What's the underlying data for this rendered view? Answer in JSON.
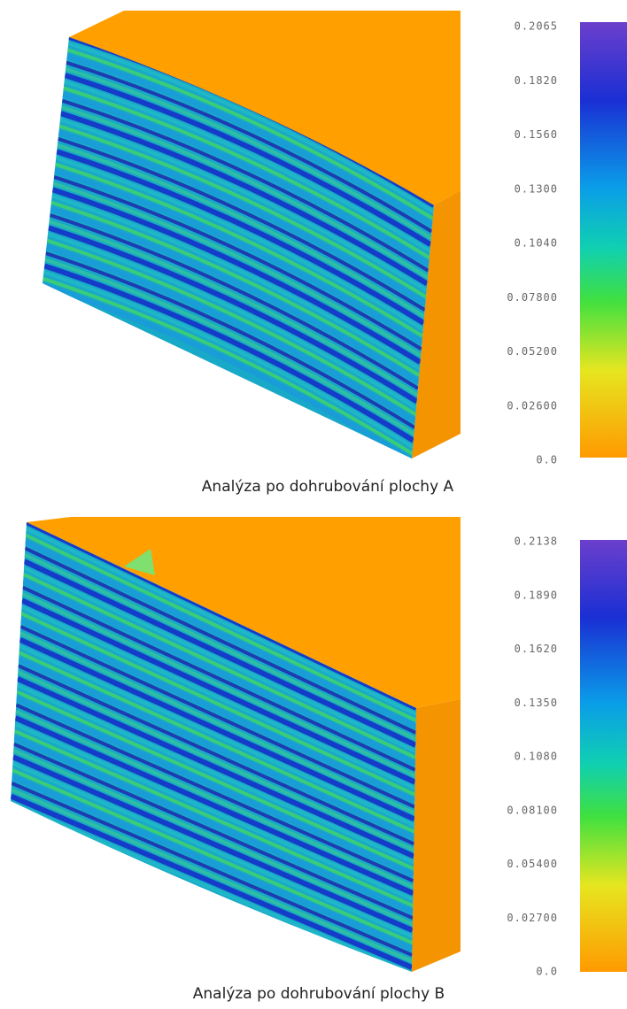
{
  "panels": [
    {
      "caption": "Analýza po dohrubování plochy A",
      "scale": [
        "0.2065",
        "0.1820",
        "0.1560",
        "0.1300",
        "0.1040",
        "0.07800",
        "0.05200",
        "0.02600",
        "0.0"
      ]
    },
    {
      "caption": "Analýza po dohrubování plochy B",
      "scale": [
        "0.2138",
        "0.1890",
        "0.1620",
        "0.1350",
        "0.1080",
        "0.08100",
        "0.05400",
        "0.02700",
        "0.0"
      ]
    }
  ]
}
